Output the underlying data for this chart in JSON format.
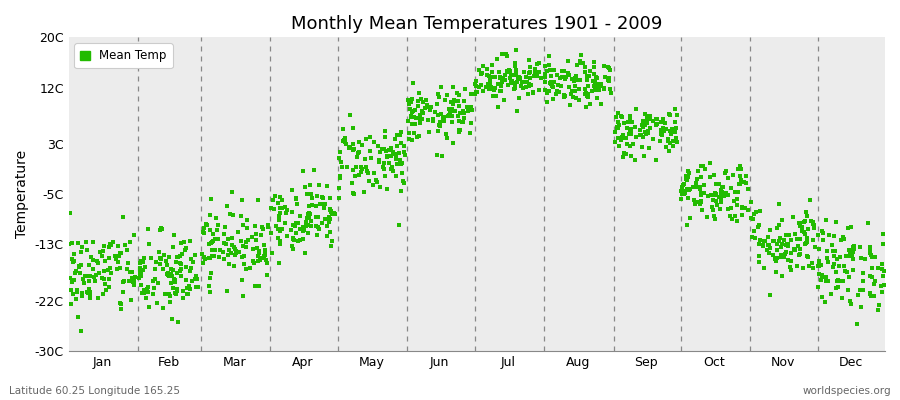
{
  "title": "Monthly Mean Temperatures 1901 - 2009",
  "ylabel": "Temperature",
  "xlabel_months": [
    "Jan",
    "Feb",
    "Mar",
    "Apr",
    "May",
    "Jun",
    "Jul",
    "Aug",
    "Sep",
    "Oct",
    "Nov",
    "Dec"
  ],
  "yticks": [
    -30,
    -22,
    -13,
    -5,
    3,
    12,
    20
  ],
  "ytick_labels": [
    "-30C",
    "-22C",
    "-13C",
    "-5C",
    "3C",
    "12C",
    "20C"
  ],
  "ylim": [
    -30,
    20
  ],
  "background_color": "#ffffff",
  "plot_bg_color": "#ececec",
  "marker_color": "#22bb00",
  "legend_label": "Mean Temp",
  "subtitle_left": "Latitude 60.25 Longitude 165.25",
  "subtitle_right": "worldspecies.org",
  "monthly_means": [
    -17.5,
    -18.0,
    -13.0,
    -8.5,
    0.5,
    7.5,
    13.5,
    12.5,
    5.0,
    -4.5,
    -12.5,
    -16.5
  ],
  "monthly_stds": [
    3.5,
    3.5,
    3.0,
    2.8,
    3.0,
    2.2,
    1.8,
    1.8,
    2.0,
    2.5,
    3.0,
    3.5
  ],
  "n_years": 109,
  "seed": 42,
  "start_year": 1901,
  "end_year": 2009
}
